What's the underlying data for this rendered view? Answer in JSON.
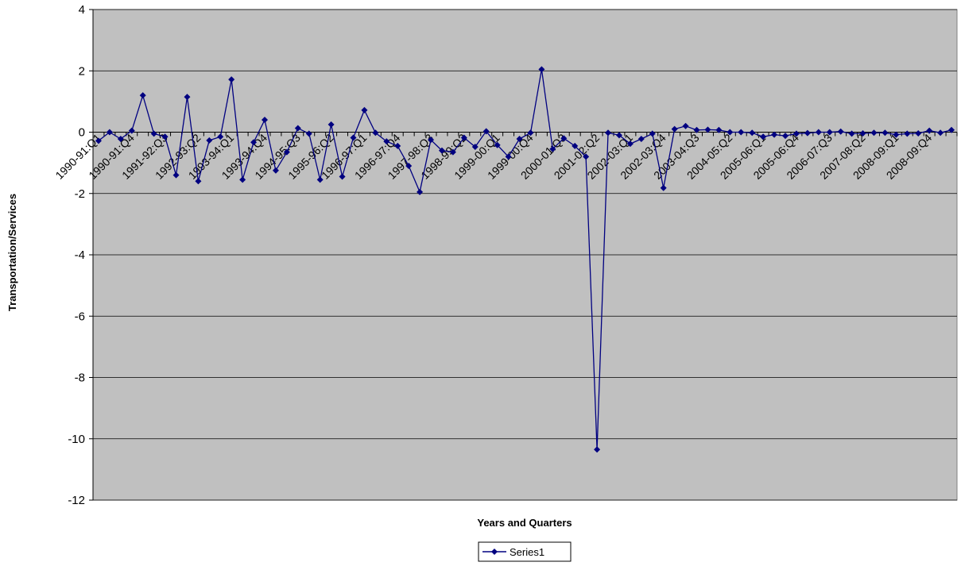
{
  "chart_data": {
    "type": "line",
    "title": "",
    "xlabel": "Years and Quarters",
    "ylabel": "Transportation/Services",
    "ylim": [
      -12,
      4
    ],
    "yticks": [
      -12,
      -10,
      -8,
      -6,
      -4,
      -2,
      0,
      2,
      4
    ],
    "grid": true,
    "legend_position": "bottom",
    "x_tick_labels": [
      "1990-91:Q1",
      "1990-91:Q4",
      "1991-92:Q3",
      "1992-93:Q2",
      "1993-94:Q1",
      "1993-94:Q4",
      "1994-95:Q3",
      "1995-96:Q2",
      "1996-97:Q1",
      "1996-97:Q4",
      "1997-98:Q3",
      "1998-99:Q2",
      "1999-00:Q1",
      "1999-00:Q4",
      "2000-01:Q3",
      "2001-02:Q2",
      "2002-03:Q1",
      "2002-03:Q4",
      "2003-04:Q3",
      "2004-05:Q2",
      "2005-06:Q1",
      "2005-06:Q4",
      "2006-07:Q3",
      "2007-08:Q2",
      "2008-09:Q1",
      "2008-09:Q4"
    ],
    "series": [
      {
        "name": "Series1",
        "color": "#000080",
        "values": [
          -0.28,
          0.0,
          -0.22,
          0.05,
          1.2,
          -0.05,
          -0.15,
          -1.4,
          1.15,
          -1.6,
          -0.27,
          -0.15,
          1.72,
          -1.55,
          -0.33,
          0.4,
          -1.25,
          -0.65,
          0.13,
          -0.05,
          -1.55,
          0.25,
          -1.45,
          -0.18,
          0.72,
          -0.02,
          -0.3,
          -0.45,
          -1.1,
          -1.95,
          -0.25,
          -0.6,
          -0.65,
          -0.18,
          -0.48,
          0.03,
          -0.42,
          -0.8,
          -0.22,
          -0.02,
          2.05,
          -0.55,
          -0.2,
          -0.45,
          -0.8,
          -10.35,
          -0.02,
          -0.1,
          -0.38,
          -0.22,
          -0.05,
          -1.82,
          0.1,
          0.2,
          0.07,
          0.08,
          0.07,
          0.0,
          0.0,
          -0.02,
          -0.15,
          -0.08,
          -0.12,
          -0.05,
          -0.03,
          0.0,
          0.0,
          0.02,
          -0.05,
          -0.04,
          -0.02,
          -0.02,
          -0.08,
          -0.05,
          -0.04,
          0.05,
          -0.02,
          0.07
        ]
      }
    ]
  }
}
